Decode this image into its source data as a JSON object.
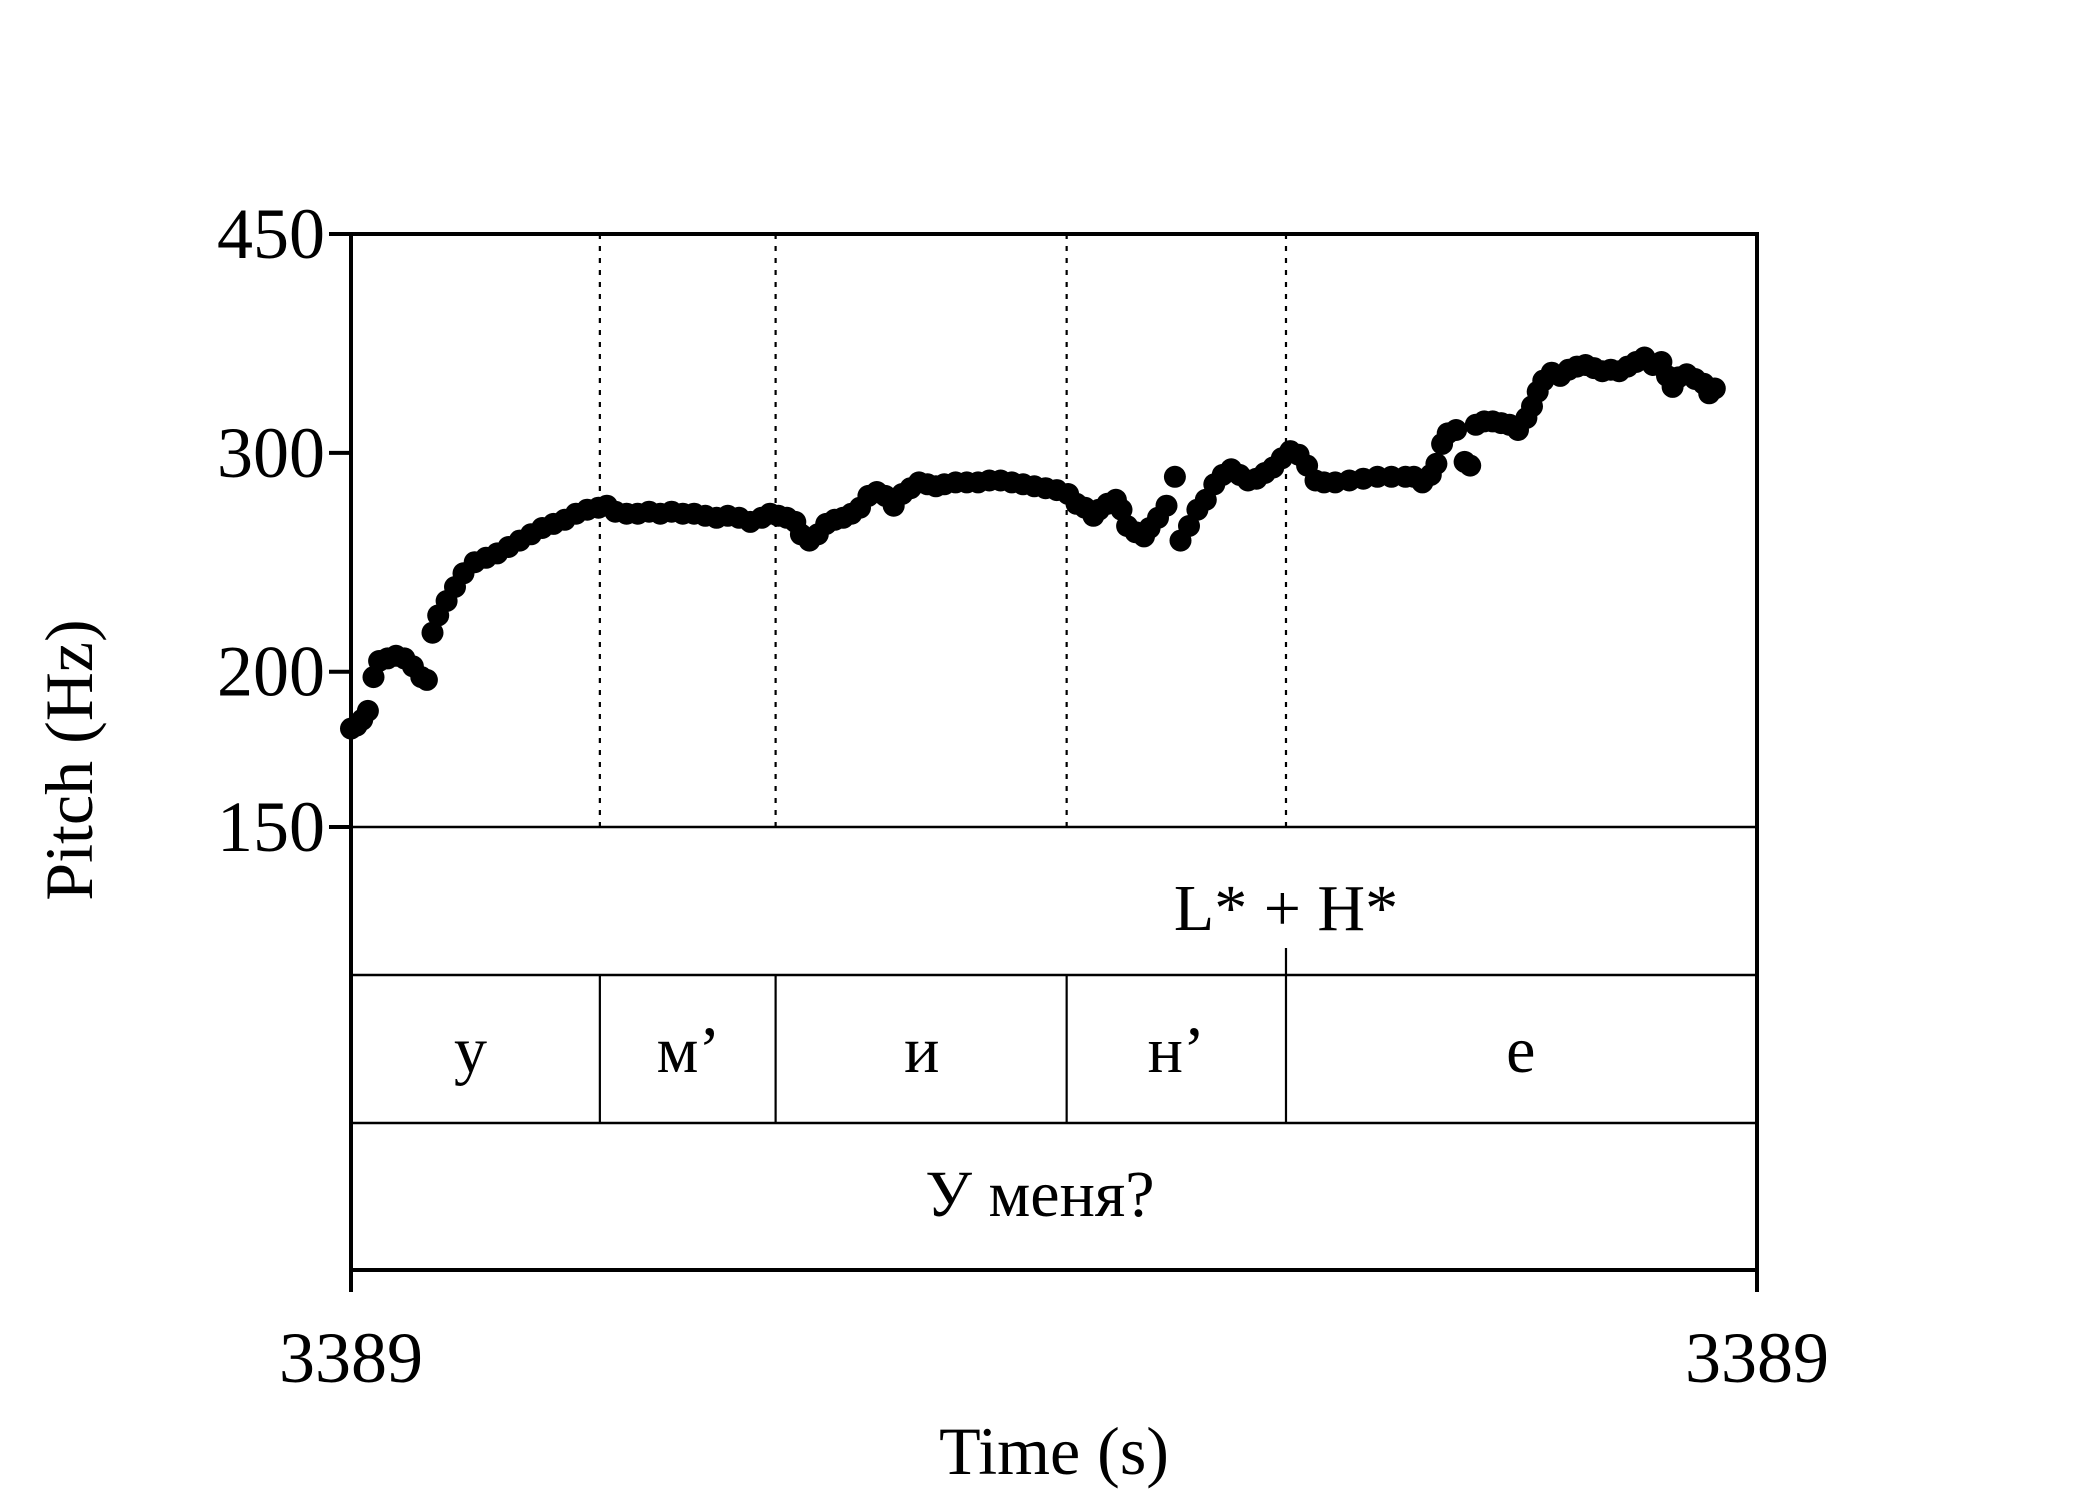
{
  "chart_data": {
    "type": "scatter",
    "title": "",
    "xlabel": "Time (s)",
    "ylabel": "Pitch (Hz)",
    "x_tick_labels": [
      "3389",
      "3389"
    ],
    "y_ticks": [
      450,
      300,
      200,
      150
    ],
    "ylim": [
      150,
      450
    ],
    "y_scale": "log",
    "grid": false,
    "legend": "none",
    "tiers": {
      "tone": {
        "label": "L* + H*"
      },
      "segments": [
        {
          "label": "у"
        },
        {
          "label": "м’"
        },
        {
          "label": "и"
        },
        {
          "label": "н’"
        },
        {
          "label": "е"
        }
      ],
      "word": {
        "label": "У меня?"
      }
    },
    "series": [
      {
        "values": [
          [
            0.0,
            180
          ],
          [
            0.004,
            181
          ],
          [
            0.008,
            183
          ],
          [
            0.012,
            186
          ],
          [
            0.016,
            198
          ],
          [
            0.02,
            204
          ],
          [
            0.026,
            205
          ],
          [
            0.032,
            206
          ],
          [
            0.038,
            205
          ],
          [
            0.044,
            202
          ],
          [
            0.05,
            198
          ],
          [
            0.054,
            197
          ],
          [
            0.058,
            215
          ],
          [
            0.062,
            222
          ],
          [
            0.068,
            228
          ],
          [
            0.074,
            234
          ],
          [
            0.08,
            240
          ],
          [
            0.088,
            245
          ],
          [
            0.096,
            247
          ],
          [
            0.104,
            249
          ],
          [
            0.112,
            252
          ],
          [
            0.12,
            255
          ],
          [
            0.128,
            258
          ],
          [
            0.136,
            261
          ],
          [
            0.144,
            263
          ],
          [
            0.152,
            265
          ],
          [
            0.16,
            268
          ],
          [
            0.168,
            270
          ],
          [
            0.176,
            271
          ],
          [
            0.182,
            272
          ],
          [
            0.188,
            269
          ],
          [
            0.196,
            268
          ],
          [
            0.204,
            268
          ],
          [
            0.212,
            269
          ],
          [
            0.22,
            268
          ],
          [
            0.228,
            269
          ],
          [
            0.236,
            268
          ],
          [
            0.244,
            268
          ],
          [
            0.252,
            267
          ],
          [
            0.26,
            266
          ],
          [
            0.268,
            267
          ],
          [
            0.276,
            266
          ],
          [
            0.284,
            264
          ],
          [
            0.292,
            266
          ],
          [
            0.298,
            268
          ],
          [
            0.304,
            267
          ],
          [
            0.31,
            266
          ],
          [
            0.316,
            264
          ],
          [
            0.32,
            258
          ],
          [
            0.326,
            255
          ],
          [
            0.332,
            258
          ],
          [
            0.338,
            263
          ],
          [
            0.344,
            265
          ],
          [
            0.35,
            266
          ],
          [
            0.356,
            268
          ],
          [
            0.362,
            271
          ],
          [
            0.368,
            277
          ],
          [
            0.374,
            279
          ],
          [
            0.38,
            277
          ],
          [
            0.386,
            272
          ],
          [
            0.392,
            278
          ],
          [
            0.398,
            281
          ],
          [
            0.404,
            284
          ],
          [
            0.41,
            283
          ],
          [
            0.416,
            282
          ],
          [
            0.422,
            283
          ],
          [
            0.43,
            284
          ],
          [
            0.438,
            284
          ],
          [
            0.446,
            284
          ],
          [
            0.454,
            285
          ],
          [
            0.462,
            285
          ],
          [
            0.47,
            284
          ],
          [
            0.478,
            283
          ],
          [
            0.486,
            282
          ],
          [
            0.494,
            281
          ],
          [
            0.502,
            280
          ],
          [
            0.51,
            278
          ],
          [
            0.516,
            273
          ],
          [
            0.522,
            271
          ],
          [
            0.528,
            267
          ],
          [
            0.532,
            270
          ],
          [
            0.538,
            273
          ],
          [
            0.544,
            275
          ],
          [
            0.548,
            270
          ],
          [
            0.552,
            262
          ],
          [
            0.558,
            259
          ],
          [
            0.564,
            257
          ],
          [
            0.568,
            261
          ],
          [
            0.574,
            266
          ],
          [
            0.58,
            272
          ],
          [
            0.586,
            287
          ],
          [
            0.59,
            255
          ],
          [
            0.596,
            262
          ],
          [
            0.602,
            270
          ],
          [
            0.608,
            275
          ],
          [
            0.614,
            283
          ],
          [
            0.62,
            288
          ],
          [
            0.626,
            291
          ],
          [
            0.632,
            288
          ],
          [
            0.638,
            285
          ],
          [
            0.644,
            286
          ],
          [
            0.65,
            289
          ],
          [
            0.656,
            292
          ],
          [
            0.662,
            297
          ],
          [
            0.668,
            301
          ],
          [
            0.674,
            299
          ],
          [
            0.68,
            293
          ],
          [
            0.686,
            285
          ],
          [
            0.692,
            284
          ],
          [
            0.7,
            284
          ],
          [
            0.71,
            285
          ],
          [
            0.72,
            286
          ],
          [
            0.73,
            287
          ],
          [
            0.74,
            287
          ],
          [
            0.75,
            287
          ],
          [
            0.756,
            287
          ],
          [
            0.762,
            284
          ],
          [
            0.768,
            288
          ],
          [
            0.772,
            294
          ],
          [
            0.776,
            305
          ],
          [
            0.78,
            311
          ],
          [
            0.786,
            313
          ],
          [
            0.792,
            295
          ],
          [
            0.796,
            293
          ],
          [
            0.8,
            316
          ],
          [
            0.806,
            318
          ],
          [
            0.812,
            318
          ],
          [
            0.818,
            317
          ],
          [
            0.824,
            316
          ],
          [
            0.83,
            313
          ],
          [
            0.836,
            320
          ],
          [
            0.84,
            327
          ],
          [
            0.844,
            336
          ],
          [
            0.848,
            343
          ],
          [
            0.854,
            348
          ],
          [
            0.86,
            346
          ],
          [
            0.866,
            350
          ],
          [
            0.872,
            352
          ],
          [
            0.878,
            353
          ],
          [
            0.884,
            351
          ],
          [
            0.89,
            349
          ],
          [
            0.896,
            350
          ],
          [
            0.902,
            349
          ],
          [
            0.908,
            352
          ],
          [
            0.914,
            355
          ],
          [
            0.92,
            358
          ],
          [
            0.926,
            353
          ],
          [
            0.932,
            355
          ],
          [
            0.936,
            346
          ],
          [
            0.94,
            339
          ],
          [
            0.944,
            345
          ],
          [
            0.95,
            347
          ],
          [
            0.956,
            344
          ],
          [
            0.962,
            341
          ],
          [
            0.966,
            335
          ],
          [
            0.97,
            338
          ]
        ]
      }
    ]
  }
}
